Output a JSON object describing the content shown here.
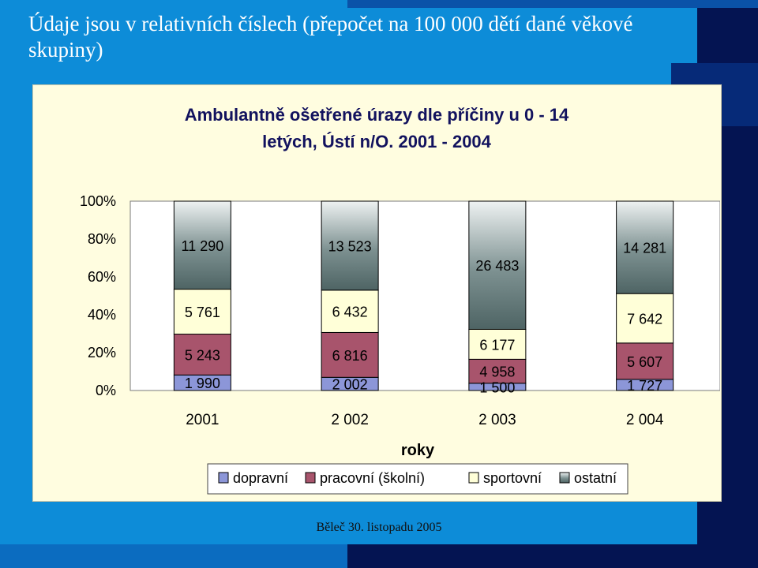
{
  "slide": {
    "title": "Údaje jsou v relativních číslech (přepočet na 100 000 dětí dané věkové skupiny)",
    "footer": "Běleč 30. listopadu 2005"
  },
  "colors": {
    "background": "#0d8cd8",
    "dark_panel": "#041452",
    "chart_background": "#fffde0"
  },
  "chart_data": {
    "type": "bar",
    "stacked_percent": true,
    "title_lines": [
      "Ambulantně ošetřené úrazy dle příčiny u 0 - 14",
      "letých, Ústí n/O. 2001 - 2004"
    ],
    "xlabel": "roky",
    "ylabel": "",
    "categories": [
      "2001",
      "2 002",
      "2 003",
      "2 004"
    ],
    "yticks": [
      "0%",
      "20%",
      "40%",
      "60%",
      "80%",
      "100%"
    ],
    "ylim": [
      0,
      100
    ],
    "grid": false,
    "legend_position": "bottom",
    "series": [
      {
        "name": "dopravní",
        "values": [
          1990,
          2002,
          1500,
          1727
        ],
        "labels": [
          "1 990",
          "2 002",
          "1 500",
          "1 727"
        ],
        "color": "#8c96d8"
      },
      {
        "name": "pracovní (školní)",
        "values": [
          5243,
          6816,
          4958,
          5607
        ],
        "labels": [
          "5 243",
          "6 816",
          "4 958",
          "5 607"
        ],
        "color": "#a8546c"
      },
      {
        "name": "sportovní",
        "values": [
          5761,
          6432,
          6177,
          7642
        ],
        "labels": [
          "5 761",
          "6 432",
          "6 177",
          "7 642"
        ],
        "color": "#ffffd8"
      },
      {
        "name": "ostatní",
        "values": [
          11290,
          13523,
          26483,
          14281
        ],
        "labels": [
          "11 290",
          "13 523",
          "26 483",
          "14 281"
        ],
        "color": "#5f7575"
      }
    ]
  }
}
